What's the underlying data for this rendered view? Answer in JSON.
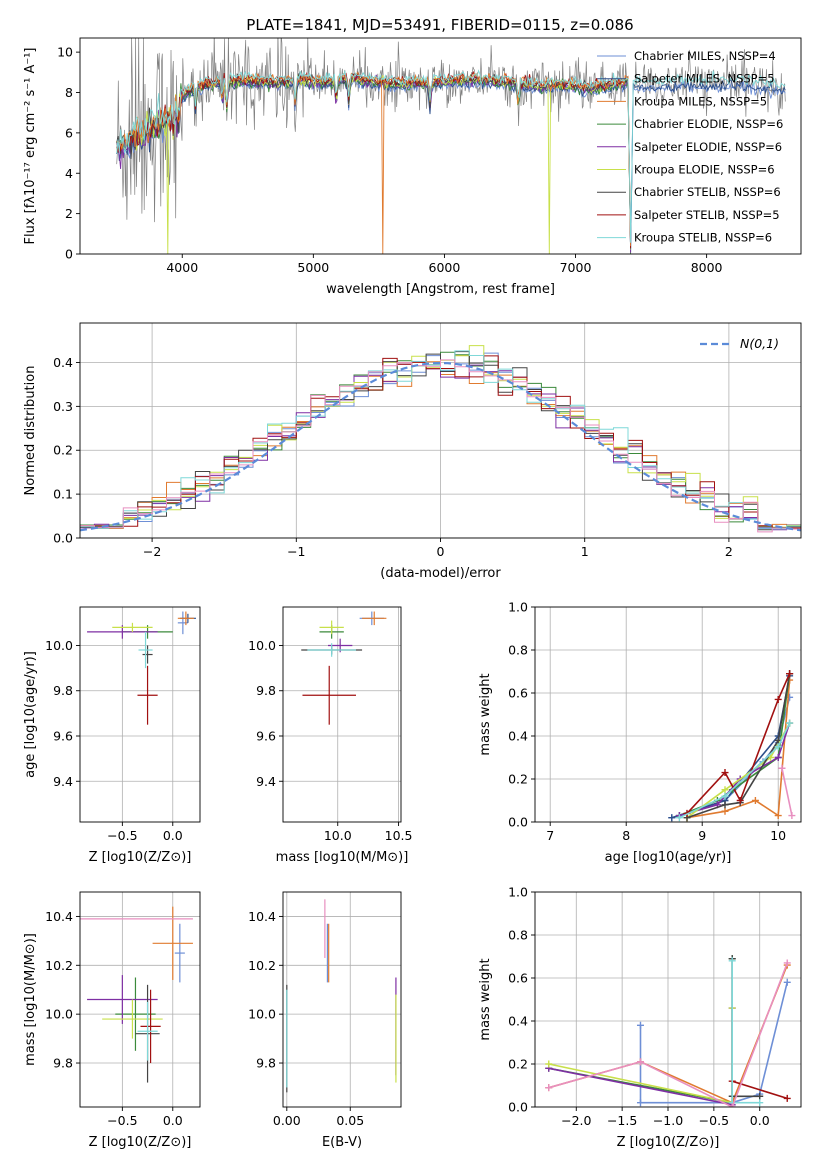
{
  "figure": {
    "title": "PLATE=1841, MJD=53491, FIBERID=0115, z=0.086"
  },
  "colors": {
    "Chabrier MILES": "#6e8fd6",
    "Salpeter MILES": "#2d4f8a",
    "Kroupa MILES": "#e07b30",
    "Chabrier ELODIE": "#3b8a3b",
    "Salpeter ELODIE": "#7e2fa3",
    "Kroupa ELODIE": "#c8e04a",
    "Chabrier STELIB": "#444444",
    "Salpeter STELIB": "#a11010",
    "Kroupa STELIB": "#7fd8d8",
    "data": "#808080",
    "normal": "#5b8bd8",
    "pinkline": "#e88fc0"
  },
  "chart_data": [
    {
      "id": "spectrum",
      "type": "line",
      "xlabel": "wavelength [Angstrom, rest frame]",
      "ylabel": "Flux [fλ10⁻¹⁷ erg cm⁻² s⁻¹ A⁻¹]",
      "xlim": [
        3220,
        8720
      ],
      "ylim": [
        0,
        10.7
      ],
      "xticks": [
        4000,
        5000,
        6000,
        7000,
        8000
      ],
      "yticks": [
        0,
        2,
        4,
        6,
        8,
        10
      ],
      "legend_position": "right",
      "legend": [
        {
          "name": "Chabrier MILES",
          "label": "Chabrier MILES, NSSP=4"
        },
        {
          "name": "Salpeter MILES",
          "label": "Salpeter MILES, NSSP=5"
        },
        {
          "name": "Kroupa MILES",
          "label": "Kroupa MILES, NSSP=5"
        },
        {
          "name": "Chabrier ELODIE",
          "label": "Chabrier ELODIE, NSSP=6"
        },
        {
          "name": "Salpeter ELODIE",
          "label": "Salpeter ELODIE, NSSP=6"
        },
        {
          "name": "Kroupa ELODIE",
          "label": "Kroupa ELODIE, NSSP=6"
        },
        {
          "name": "Chabrier STELIB",
          "label": "Chabrier STELIB, NSSP=6"
        },
        {
          "name": "Salpeter STELIB",
          "label": "Salpeter STELIB, NSSP=5"
        },
        {
          "name": "Kroupa STELIB",
          "label": "Kroupa STELIB, NSSP=6"
        }
      ],
      "continuum": {
        "x": [
          3500,
          3600,
          3700,
          3800,
          3900,
          4000,
          4100,
          4300,
          4500,
          4700,
          4900,
          5100,
          5300,
          5500,
          5700,
          5900,
          6100,
          6300,
          6500,
          6700,
          6900,
          7100,
          7300,
          7400,
          7420,
          7440,
          7600,
          7800,
          8000,
          8200,
          8400,
          8600
        ],
        "y": [
          5.2,
          5.6,
          6.0,
          6.4,
          6.6,
          7.8,
          8.3,
          8.5,
          8.6,
          8.5,
          8.6,
          8.5,
          8.7,
          8.5,
          8.4,
          8.5,
          8.6,
          8.6,
          8.5,
          8.3,
          8.4,
          8.2,
          8.4,
          8.5,
          0.2,
          8.5,
          8.3,
          8.5,
          8.4,
          8.5,
          8.4,
          8.2
        ]
      }
    },
    {
      "id": "residuals",
      "type": "histogram",
      "xlabel": "(data-model)/error",
      "ylabel": "Normed distribution",
      "xlim": [
        -2.5,
        2.5
      ],
      "ylim": [
        0,
        0.49
      ],
      "xticks": [
        -2,
        -1,
        0,
        1,
        2
      ],
      "yticks": [
        0.0,
        0.1,
        0.2,
        0.3,
        0.4
      ],
      "grid": true,
      "legend_position": "top-right",
      "normal_label": "N(0,1)",
      "bin_width": 0.1,
      "bins_start": -2.5
    },
    {
      "id": "age-vs-z",
      "type": "errorbar",
      "xlabel": "Z [log10(Z/Z⊙)]",
      "ylabel": "age  [log10(age/yr)]",
      "xlim": [
        -0.92,
        0.27
      ],
      "ylim": [
        9.22,
        10.17
      ],
      "xticks": [
        -0.5,
        0.0
      ],
      "yticks": [
        9.4,
        9.6,
        9.8,
        10.0
      ],
      "grid": true,
      "points": [
        {
          "s": "Chabrier MILES",
          "x": 0.1,
          "y": 10.1,
          "ex": 0.05,
          "ey": 0.05
        },
        {
          "s": "Salpeter MILES",
          "x": 0.15,
          "y": 10.12,
          "ex": 0.08,
          "ey": 0.02
        },
        {
          "s": "Kroupa MILES",
          "x": 0.13,
          "y": 10.12,
          "ex": 0.08,
          "ey": 0.03
        },
        {
          "s": "Chabrier ELODIE",
          "x": -0.25,
          "y": 10.06,
          "ex": 0.25,
          "ey": 0.03
        },
        {
          "s": "Salpeter ELODIE",
          "x": -0.5,
          "y": 10.06,
          "ex": 0.35,
          "ey": 0.03
        },
        {
          "s": "Kroupa ELODIE",
          "x": -0.4,
          "y": 10.08,
          "ex": 0.2,
          "ey": 0.02
        },
        {
          "s": "Chabrier STELIB",
          "x": -0.25,
          "y": 9.96,
          "ex": 0.05,
          "ey": 0.04
        },
        {
          "s": "Salpeter STELIB",
          "x": -0.25,
          "y": 9.78,
          "ex": 0.1,
          "ey": 0.13
        },
        {
          "s": "Kroupa STELIB",
          "x": -0.27,
          "y": 9.98,
          "ex": 0.07,
          "ey": 0.08
        }
      ]
    },
    {
      "id": "age-vs-mass",
      "type": "errorbar",
      "xlabel": "mass [log10(M/M⊙)]",
      "ylabel": "",
      "xlim": [
        9.55,
        10.52
      ],
      "ylim": [
        9.22,
        10.17
      ],
      "xticks": [
        10.0,
        10.5
      ],
      "yticks": [
        9.4,
        9.6,
        9.8,
        10.0
      ],
      "grid": true,
      "points": [
        {
          "s": "Chabrier MILES",
          "x": 10.28,
          "y": 10.12,
          "ex": 0.1,
          "ey": 0.03
        },
        {
          "s": "Kroupa MILES",
          "x": 10.3,
          "y": 10.12,
          "ex": 0.1,
          "ey": 0.03
        },
        {
          "s": "Chabrier ELODIE",
          "x": 9.95,
          "y": 10.06,
          "ex": 0.1,
          "ey": 0.03
        },
        {
          "s": "Salpeter ELODIE",
          "x": 10.02,
          "y": 10.0,
          "ex": 0.1,
          "ey": 0.03
        },
        {
          "s": "Kroupa ELODIE",
          "x": 9.95,
          "y": 10.08,
          "ex": 0.1,
          "ey": 0.03
        },
        {
          "s": "Chabrier STELIB",
          "x": 9.95,
          "y": 9.98,
          "ex": 0.25,
          "ey": 0.02
        },
        {
          "s": "Salpeter STELIB",
          "x": 9.93,
          "y": 9.78,
          "ex": 0.22,
          "ey": 0.13
        },
        {
          "s": "Kroupa STELIB",
          "x": 9.95,
          "y": 9.98,
          "ex": 0.2,
          "ey": 0.03
        }
      ]
    },
    {
      "id": "massweight-vs-age",
      "type": "line",
      "xlabel": "age  [log10(age/yr)]",
      "ylabel": "mass weight",
      "xlim": [
        6.8,
        10.3
      ],
      "ylim": [
        0,
        1
      ],
      "xticks": [
        7,
        8,
        9,
        10
      ],
      "yticks": [
        0.0,
        0.2,
        0.4,
        0.6,
        0.8,
        1.0
      ],
      "grid": true,
      "series": [
        {
          "s": "Chabrier MILES",
          "x": [
            8.6,
            9.3,
            9.8,
            10.0,
            10.15
          ],
          "y": [
            0.02,
            0.1,
            0.28,
            0.37,
            0.58
          ]
        },
        {
          "s": "Salpeter MILES",
          "x": [
            8.6,
            9.3,
            10.0,
            10.15
          ],
          "y": [
            0.02,
            0.1,
            0.4,
            0.68
          ]
        },
        {
          "s": "Kroupa MILES",
          "x": [
            8.8,
            9.3,
            9.7,
            10.0,
            10.15
          ],
          "y": [
            0.02,
            0.05,
            0.1,
            0.03,
            0.66
          ]
        },
        {
          "s": "Chabrier ELODIE",
          "x": [
            8.7,
            9.2,
            9.4,
            10.0,
            10.15
          ],
          "y": [
            0.03,
            0.1,
            0.15,
            0.3,
            0.69
          ]
        },
        {
          "s": "Salpeter ELODIE",
          "x": [
            8.7,
            9.2,
            9.5,
            10.0,
            10.15
          ],
          "y": [
            0.03,
            0.08,
            0.2,
            0.3,
            0.46
          ]
        },
        {
          "s": "Kroupa ELODIE",
          "x": [
            8.8,
            9.3,
            9.9,
            10.15
          ],
          "y": [
            0.02,
            0.15,
            0.3,
            0.46
          ]
        },
        {
          "s": "Chabrier STELIB",
          "x": [
            8.8,
            9.3,
            9.5,
            10.0,
            10.15
          ],
          "y": [
            0.02,
            0.08,
            0.09,
            0.38,
            0.69
          ]
        },
        {
          "s": "Salpeter STELIB",
          "x": [
            8.8,
            9.3,
            9.5,
            10.0,
            10.15
          ],
          "y": [
            0.04,
            0.23,
            0.1,
            0.57,
            0.69
          ]
        },
        {
          "s": "Kroupa STELIB",
          "x": [
            8.7,
            9.3,
            10.0,
            10.15
          ],
          "y": [
            0.02,
            0.12,
            0.35,
            0.46
          ]
        }
      ],
      "pink_series": {
        "x": [
          10.05,
          10.18
        ],
        "y": [
          0.25,
          0.03
        ]
      }
    },
    {
      "id": "mass-vs-z",
      "type": "errorbar",
      "xlabel": "Z [log10(Z/Z⊙)]",
      "ylabel": "mass [log10(M/M⊙)]",
      "xlim": [
        -0.92,
        0.27
      ],
      "ylim": [
        9.62,
        10.5
      ],
      "xticks": [
        -0.5,
        0.0
      ],
      "yticks": [
        9.8,
        10.0,
        10.2,
        10.4
      ],
      "grid": true,
      "points": [
        {
          "s": "Chabrier MILES",
          "x": 0.07,
          "y": 10.25,
          "ex": 0.05,
          "ey": 0.12
        },
        {
          "s": "Kroupa MILES",
          "x": 0.0,
          "y": 10.29,
          "ex": 0.2,
          "ey": 0.15
        },
        {
          "s": "Chabrier ELODIE",
          "x": -0.37,
          "y": 10.0,
          "ex": 0.2,
          "ey": 0.15
        },
        {
          "s": "Salpeter ELODIE",
          "x": -0.5,
          "y": 10.06,
          "ex": 0.35,
          "ey": 0.1
        },
        {
          "s": "Kroupa ELODIE",
          "x": -0.4,
          "y": 9.98,
          "ex": 0.3,
          "ey": 0.08
        },
        {
          "s": "Chabrier STELIB",
          "x": -0.25,
          "y": 9.92,
          "ex": 0.12,
          "ey": 0.2
        },
        {
          "s": "Salpeter STELIB",
          "x": -0.22,
          "y": 9.95,
          "ex": 0.1,
          "ey": 0.15
        },
        {
          "s": "Kroupa STELIB",
          "x": -0.25,
          "y": 9.93,
          "ex": 0.1,
          "ey": 0.12
        }
      ],
      "pink_line": {
        "y": 10.39,
        "x0": -0.92,
        "x1": 0.2
      }
    },
    {
      "id": "mass-vs-ebv",
      "type": "errorbar",
      "xlabel": "E(B-V)",
      "ylabel": "",
      "xlim": [
        -0.003,
        0.09
      ],
      "ylim": [
        9.62,
        10.5
      ],
      "xticks": [
        0.0,
        0.05
      ],
      "yticks": [
        9.8,
        10.0,
        10.2,
        10.4
      ],
      "grid": true,
      "points": [
        {
          "s": "Chabrier MILES",
          "x": 0.032,
          "y": 10.25,
          "ex": 0,
          "ey": 0.12
        },
        {
          "s": "Kroupa MILES",
          "x": 0.033,
          "y": 10.25,
          "ex": 0,
          "ey": 0.12
        },
        {
          "s": "Chabrier STELIB",
          "x": 0.0,
          "y": 9.9,
          "ex": 0,
          "ey": 0.22
        },
        {
          "s": "Kroupa STELIB",
          "x": 0.0,
          "y": 9.9,
          "ex": 0,
          "ey": 0.2
        },
        {
          "s": "Salpeter ELODIE",
          "x": 0.086,
          "y": 9.95,
          "ex": 0,
          "ey": 0.2
        },
        {
          "s": "Kroupa ELODIE",
          "x": 0.086,
          "y": 9.9,
          "ex": 0,
          "ey": 0.18
        }
      ],
      "pink_point": {
        "x": 0.03,
        "y": 10.35,
        "ey": 0.12
      }
    },
    {
      "id": "massweight-vs-z",
      "type": "line",
      "xlabel": "Z [log10(Z/Z⊙)]",
      "ylabel": "mass weight",
      "xlim": [
        -2.45,
        0.45
      ],
      "ylim": [
        0,
        1
      ],
      "xticks": [
        -2.0,
        -1.5,
        -1.0,
        -0.5,
        0.0
      ],
      "yticks": [
        0.0,
        0.2,
        0.4,
        0.6,
        0.8,
        1.0
      ],
      "grid": true,
      "series": [
        {
          "s": "Chabrier MILES",
          "x": [
            -1.3,
            -1.3,
            -0.3,
            0.0,
            0.3
          ],
          "y": [
            0.38,
            0.02,
            0.02,
            0.06,
            0.58
          ]
        },
        {
          "s": "Kroupa MILES",
          "x": [
            -2.3,
            -1.3,
            -0.3,
            0.3
          ],
          "y": [
            0.09,
            0.21,
            0.02,
            0.66
          ]
        },
        {
          "s": "Chabrier ELODIE",
          "x": [
            -2.3,
            -0.3,
            -0.3
          ],
          "y": [
            0.18,
            0.02,
            0.69
          ]
        },
        {
          "s": "Salpeter ELODIE",
          "x": [
            -2.3,
            -0.3,
            -0.3
          ],
          "y": [
            0.18,
            0.01,
            0.46
          ]
        },
        {
          "s": "Kroupa ELODIE",
          "x": [
            -2.3,
            -0.3,
            -0.3
          ],
          "y": [
            0.2,
            0.02,
            0.46
          ]
        },
        {
          "s": "Chabrier STELIB",
          "x": [
            -0.3,
            -0.3,
            0.0
          ],
          "y": [
            0.69,
            0.05,
            0.05
          ]
        },
        {
          "s": "Salpeter STELIB",
          "x": [
            -0.3,
            0.3
          ],
          "y": [
            0.12,
            0.04
          ]
        },
        {
          "s": "Kroupa STELIB",
          "x": [
            -0.3,
            -0.3,
            0.0
          ],
          "y": [
            0.68,
            0.02,
            0.02
          ]
        }
      ],
      "pink_series": {
        "x": [
          -2.3,
          -1.3,
          -0.3,
          0.3
        ],
        "y": [
          0.09,
          0.21,
          0.0,
          0.67
        ]
      }
    }
  ]
}
